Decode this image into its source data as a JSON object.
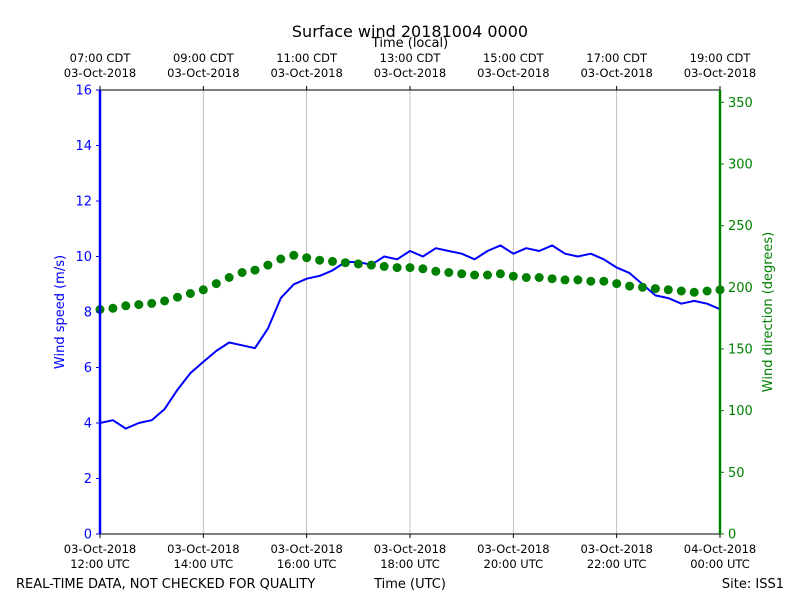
{
  "chart_data": {
    "type": "line",
    "title": "Surface wind 20181004 0000",
    "top_axis_label": "Time (local)",
    "bottom_axis_label": "Time (UTC)",
    "ylabel_left": "Wind speed (m/s)",
    "ylabel_right": "Wind direction (degrees)",
    "footer_left": "REAL-TIME DATA, NOT CHECKED FOR QUALITY",
    "footer_right": "Site: ISS1",
    "x_range_hours_utc": [
      12,
      24
    ],
    "ylim_left": [
      0,
      16
    ],
    "ylim_right": [
      0,
      360
    ],
    "yticks_left": [
      "0",
      "2",
      "4",
      "6",
      "8",
      "10",
      "12",
      "14",
      "16"
    ],
    "yticks_right": [
      "0",
      "50",
      "100",
      "150",
      "200",
      "250",
      "300",
      "350"
    ],
    "xticks_bottom": [
      {
        "line1": "03-Oct-2018",
        "line2": "12:00 UTC"
      },
      {
        "line1": "03-Oct-2018",
        "line2": "14:00 UTC"
      },
      {
        "line1": "03-Oct-2018",
        "line2": "16:00 UTC"
      },
      {
        "line1": "03-Oct-2018",
        "line2": "18:00 UTC"
      },
      {
        "line1": "03-Oct-2018",
        "line2": "20:00 UTC"
      },
      {
        "line1": "03-Oct-2018",
        "line2": "22:00 UTC"
      },
      {
        "line1": "04-Oct-2018",
        "line2": "00:00 UTC"
      }
    ],
    "xticks_top": [
      {
        "line1": "07:00 CDT",
        "line2": "03-Oct-2018"
      },
      {
        "line1": "09:00 CDT",
        "line2": "03-Oct-2018"
      },
      {
        "line1": "11:00 CDT",
        "line2": "03-Oct-2018"
      },
      {
        "line1": "13:00 CDT",
        "line2": "03-Oct-2018"
      },
      {
        "line1": "15:00 CDT",
        "line2": "03-Oct-2018"
      },
      {
        "line1": "17:00 CDT",
        "line2": "03-Oct-2018"
      },
      {
        "line1": "19:00 CDT",
        "line2": "03-Oct-2018"
      }
    ],
    "grid": "vertical",
    "series": [
      {
        "axis": "left",
        "style": "line",
        "color": "#0000ff",
        "x_hours_utc": [
          12.0,
          12.25,
          12.5,
          12.75,
          13.0,
          13.25,
          13.5,
          13.75,
          14.0,
          14.25,
          14.5,
          14.75,
          15.0,
          15.25,
          15.5,
          15.75,
          16.0,
          16.25,
          16.5,
          16.75,
          17.0,
          17.25,
          17.5,
          17.75,
          18.0,
          18.25,
          18.5,
          18.75,
          19.0,
          19.25,
          19.5,
          19.75,
          20.0,
          20.25,
          20.5,
          20.75,
          21.0,
          21.25,
          21.5,
          21.75,
          22.0,
          22.25,
          22.5,
          22.75,
          23.0,
          23.25,
          23.5,
          23.75,
          24.0
        ],
        "values": [
          4.0,
          4.1,
          3.8,
          4.0,
          4.1,
          4.5,
          5.2,
          5.8,
          6.2,
          6.6,
          6.9,
          6.8,
          6.7,
          7.4,
          8.5,
          9.0,
          9.2,
          9.3,
          9.5,
          9.8,
          9.8,
          9.7,
          10.0,
          9.9,
          10.2,
          10.0,
          10.3,
          10.2,
          10.1,
          9.9,
          10.2,
          10.4,
          10.1,
          10.3,
          10.2,
          10.4,
          10.1,
          10.0,
          10.1,
          9.9,
          9.6,
          9.4,
          9.0,
          8.6,
          8.5,
          8.3,
          8.4,
          8.3,
          8.1
        ]
      },
      {
        "axis": "right",
        "style": "markers",
        "color": "#008000",
        "x_hours_utc": [
          12.0,
          12.25,
          12.5,
          12.75,
          13.0,
          13.25,
          13.5,
          13.75,
          14.0,
          14.25,
          14.5,
          14.75,
          15.0,
          15.25,
          15.5,
          15.75,
          16.0,
          16.25,
          16.5,
          16.75,
          17.0,
          17.25,
          17.5,
          17.75,
          18.0,
          18.25,
          18.5,
          18.75,
          19.0,
          19.25,
          19.5,
          19.75,
          20.0,
          20.25,
          20.5,
          20.75,
          21.0,
          21.25,
          21.5,
          21.75,
          22.0,
          22.25,
          22.5,
          22.75,
          23.0,
          23.25,
          23.5,
          23.75,
          24.0
        ],
        "values": [
          182,
          183,
          185,
          186,
          187,
          189,
          192,
          195,
          198,
          203,
          208,
          212,
          214,
          218,
          223,
          226,
          224,
          222,
          221,
          220,
          219,
          218,
          217,
          216,
          216,
          215,
          213,
          212,
          211,
          210,
          210,
          211,
          209,
          208,
          208,
          207,
          206,
          206,
          205,
          205,
          203,
          201,
          200,
          199,
          198,
          197,
          196,
          197,
          198
        ]
      }
    ]
  }
}
